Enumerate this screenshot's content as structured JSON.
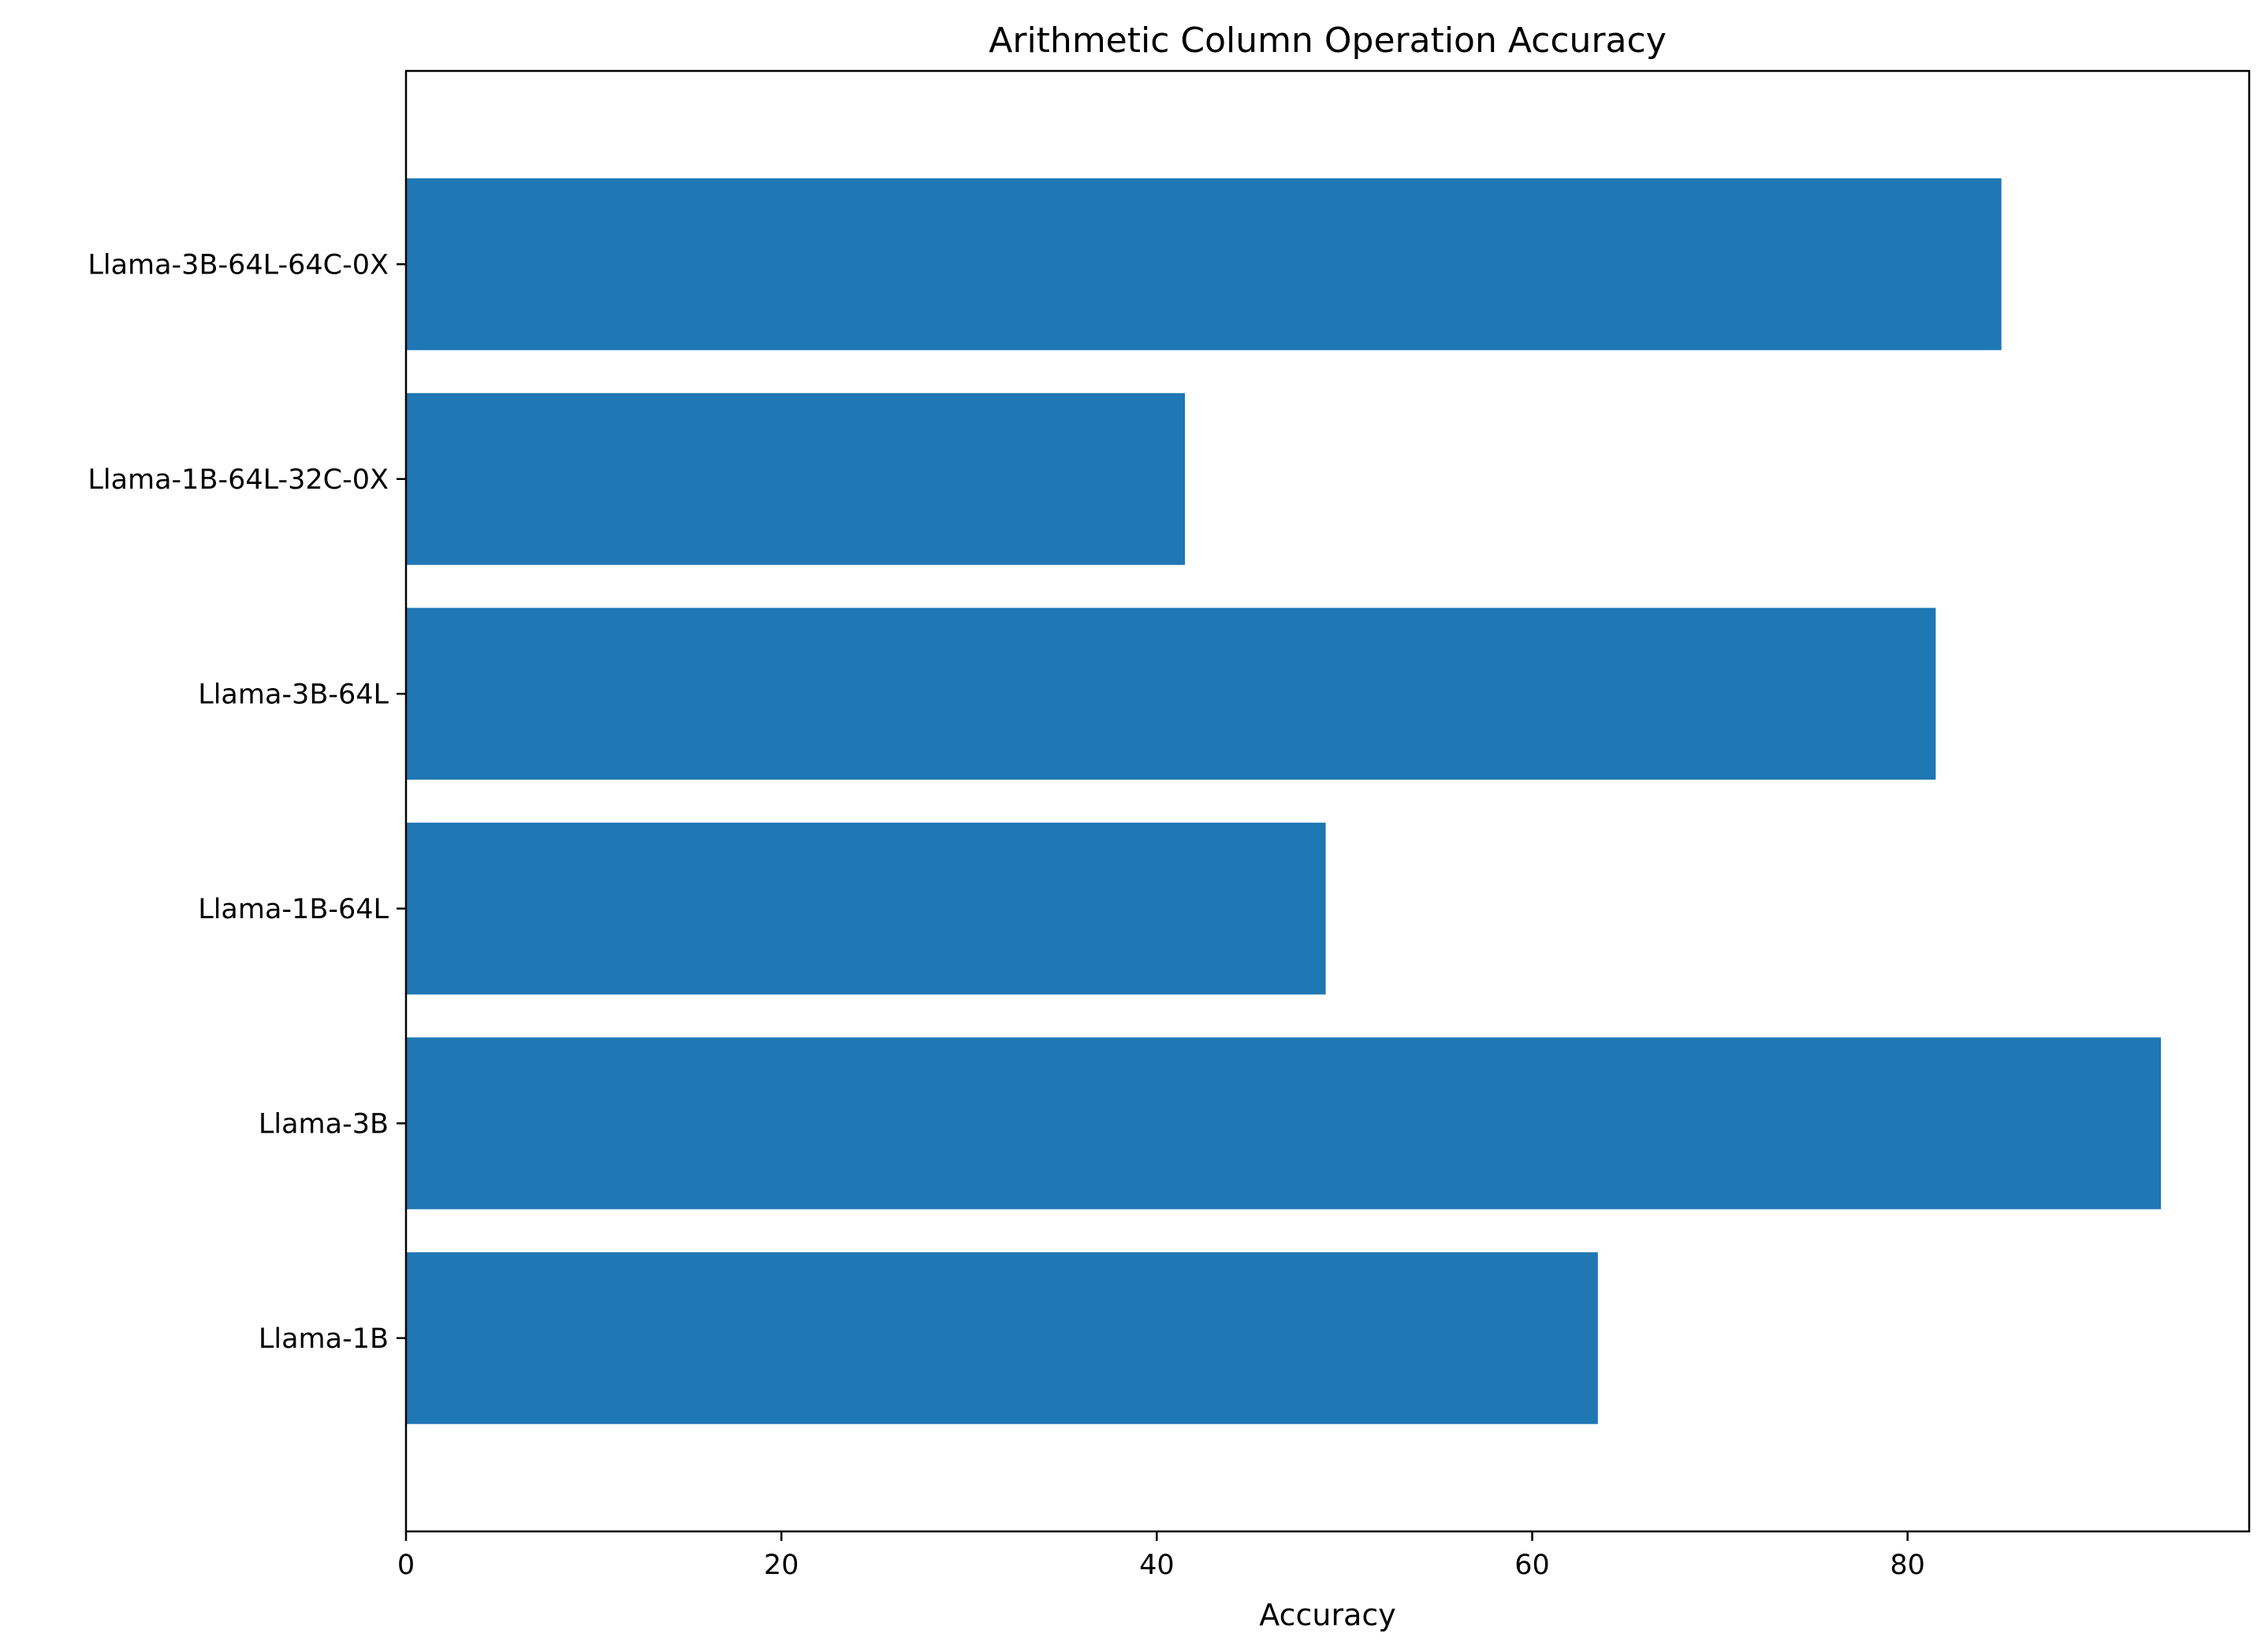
{
  "chart_data": {
    "type": "bar",
    "orientation": "horizontal",
    "title": "Arithmetic Column Operation Accuracy",
    "xlabel": "Accuracy",
    "ylabel": "",
    "categories": [
      "Llama-1B",
      "Llama-3B",
      "Llama-1B-64L",
      "Llama-3B-64L",
      "Llama-1B-64L-32C-0X",
      "Llama-3B-64L-64C-0X"
    ],
    "values": [
      63.5,
      93.5,
      49.0,
      81.5,
      41.5,
      85.0
    ],
    "xlim": [
      0,
      98.2
    ],
    "xticks": [
      0,
      20,
      40,
      60,
      80
    ],
    "grid": false,
    "legend": "none",
    "bar_color": "#1f77b4"
  }
}
